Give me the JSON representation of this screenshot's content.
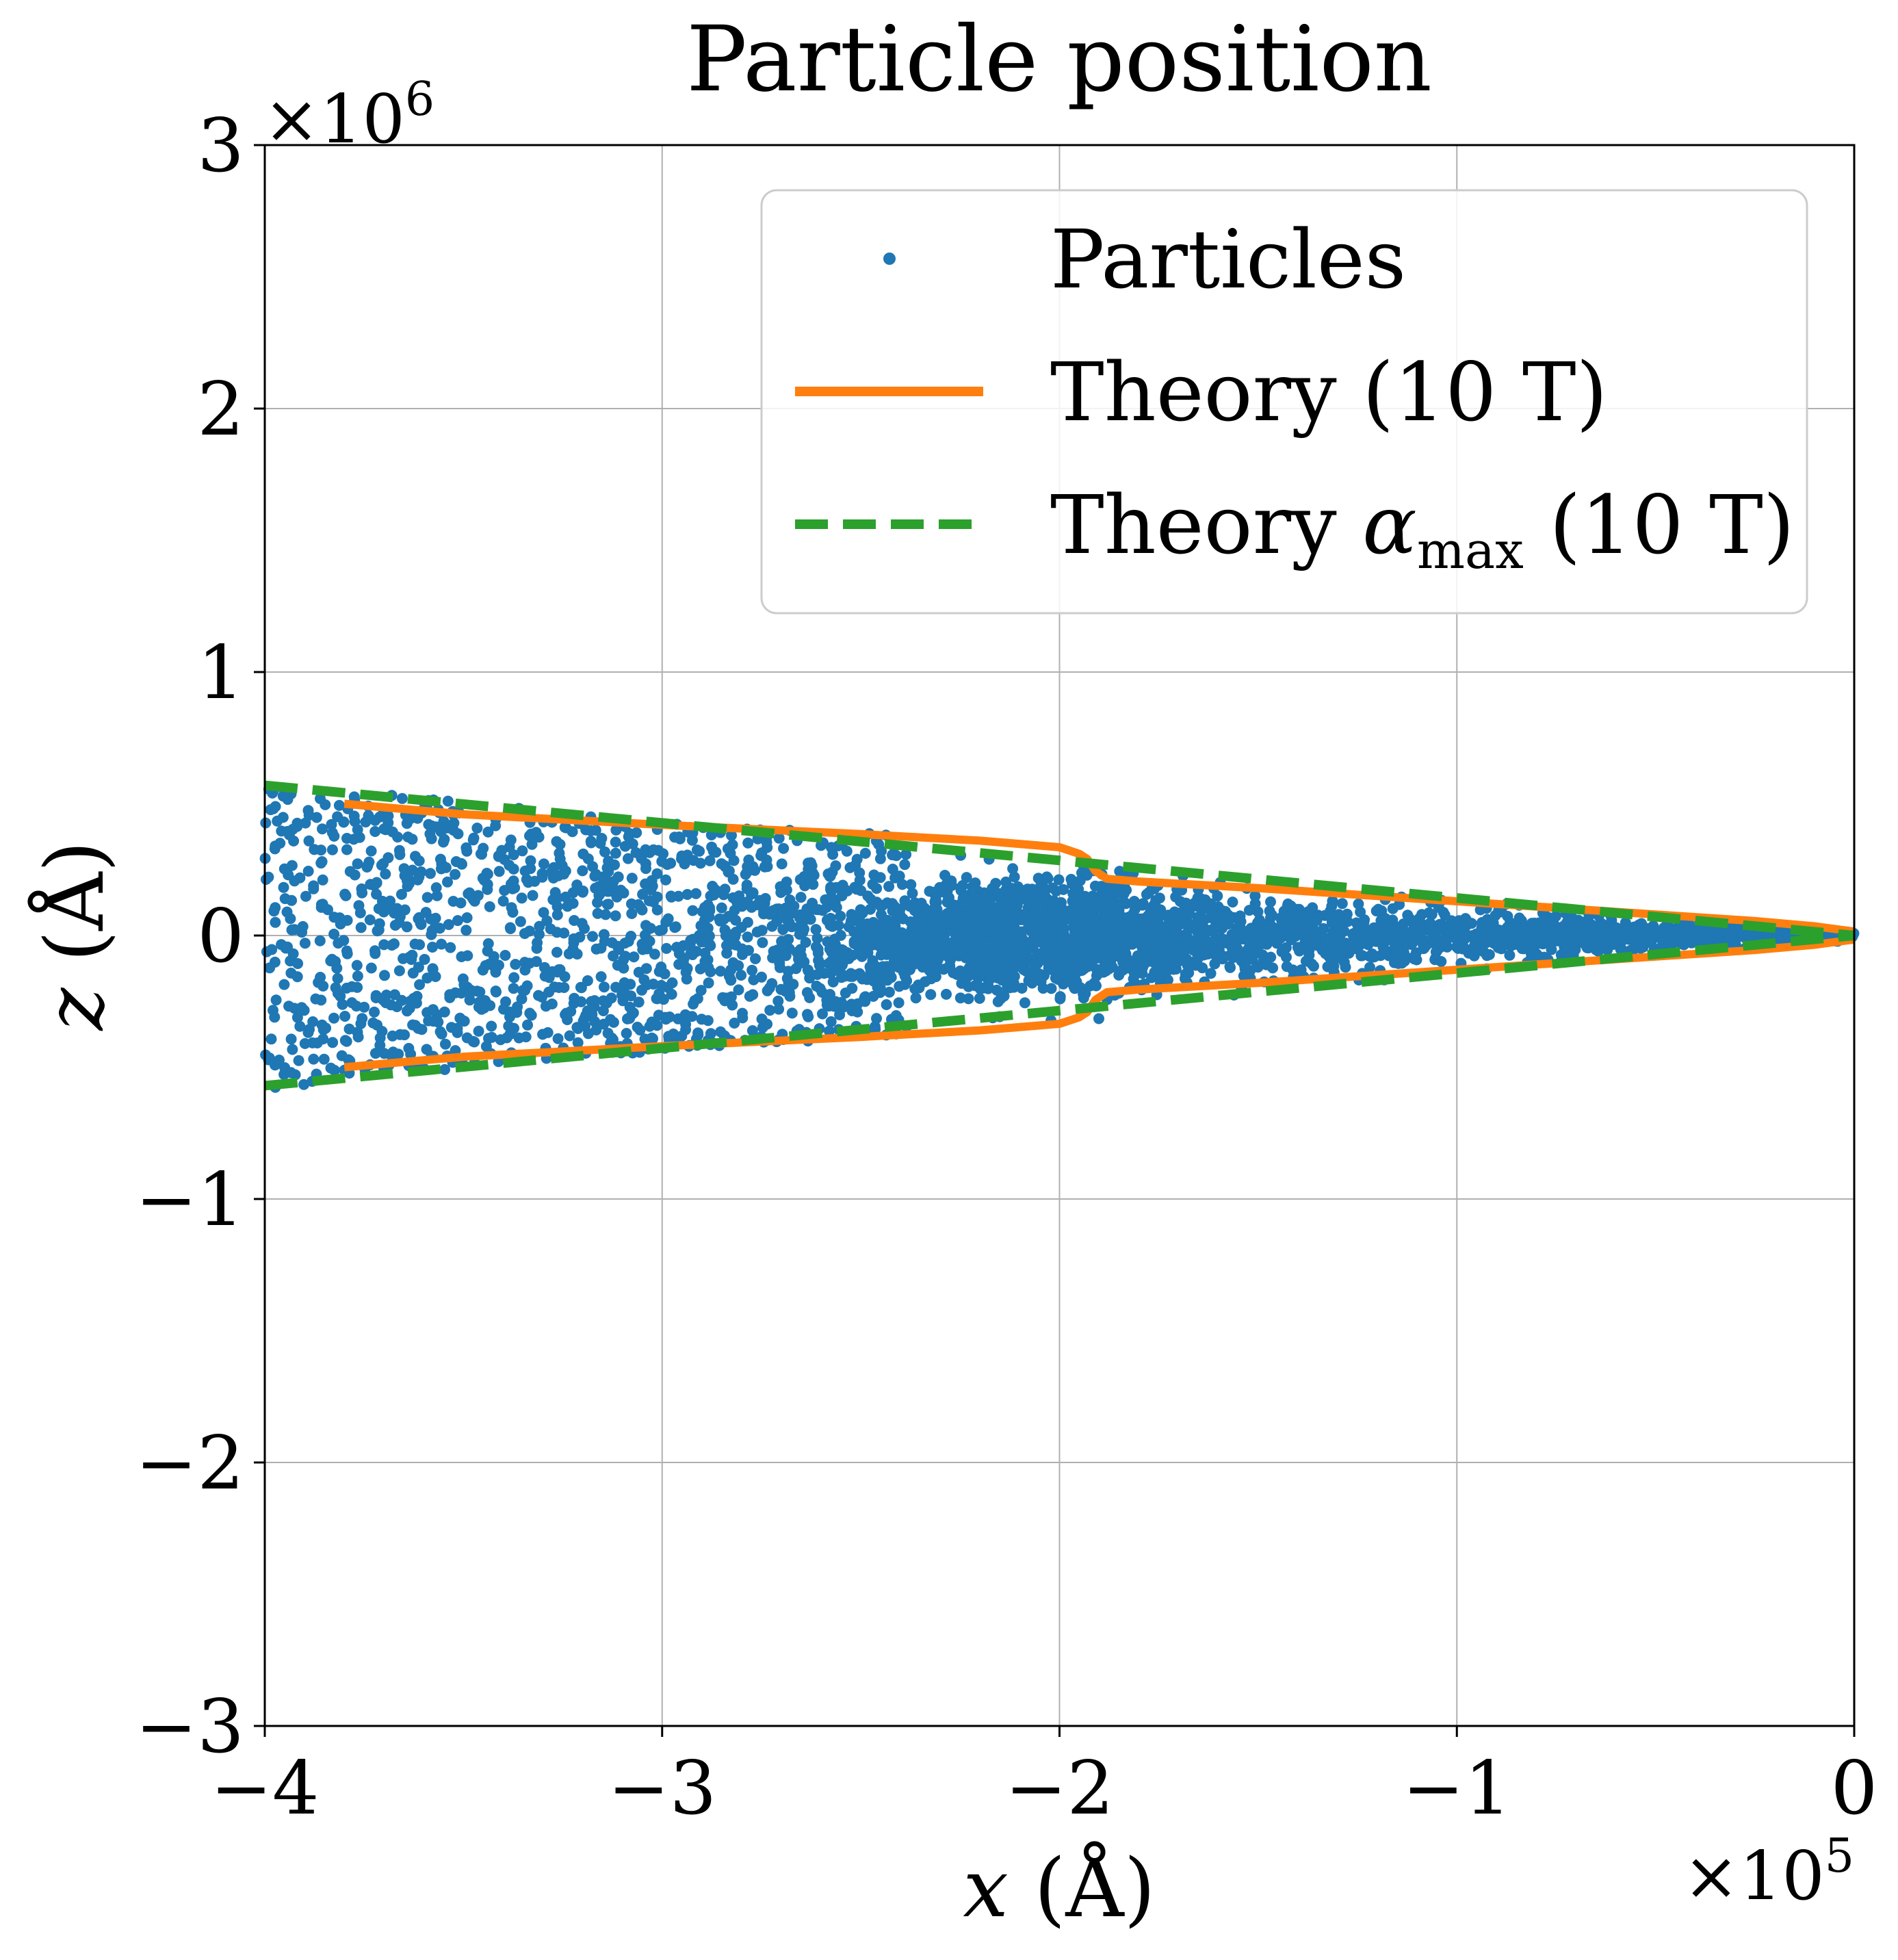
{
  "chart_data": {
    "type": "scatter",
    "title": "Particle position",
    "xlabel_var": "x",
    "xlabel_unit": "(Å)",
    "ylabel_var": "z",
    "ylabel_unit": "(Å)",
    "x_multiplier_base": "×10",
    "x_multiplier_exp": "5",
    "y_multiplier_base": "×10",
    "y_multiplier_exp": "6",
    "xlim": [
      -4,
      0
    ],
    "ylim": [
      -3,
      3
    ],
    "xticks": [
      -4,
      -3,
      -2,
      -1,
      0
    ],
    "xtick_labels": [
      "−4",
      "−3",
      "−2",
      "−1",
      "0"
    ],
    "yticks": [
      -3,
      -2,
      -1,
      0,
      1,
      2,
      3
    ],
    "ytick_labels": [
      "−3",
      "−2",
      "−1",
      "0",
      "1",
      "2",
      "3"
    ],
    "grid": true,
    "legend_position": "top-right",
    "legend": {
      "particles": "Particles",
      "theory": "Theory (10 T)",
      "alpha_prefix": "Theory ",
      "alpha_symbol": "α",
      "alpha_sub": "max",
      "alpha_suffix": " (10 T)"
    },
    "colors": {
      "particles": "#1f77b4",
      "theory": "#ff7f0e",
      "alpha_max": "#2ca02c",
      "grid": "#b0b0b0",
      "axes": "#000000"
    },
    "series": [
      {
        "name": "Particles",
        "kind": "scatter",
        "n_points": 4000,
        "description_envelope": {
          "x_range": [
            -4.0,
            0.0
          ],
          "z_max_at_x": [
            [
              -4.0,
              0.58
            ],
            [
              -3.0,
              0.45
            ],
            [
              -2.0,
              0.36
            ],
            [
              -1.9,
              0.27
            ],
            [
              -1.0,
              0.13
            ],
            [
              0.0,
              0.02
            ]
          ],
          "dense_core": {
            "x_range": [
              -2.6,
              -1.6
            ],
            "z_spread": 0.18
          }
        }
      },
      {
        "name": "Theory (10 T)",
        "kind": "line",
        "x": [
          -3.8,
          -3.5,
          -3.0,
          -2.5,
          -2.2,
          -2.0,
          -1.95,
          -1.93,
          -1.91,
          -1.88,
          -1.8,
          -1.5,
          -1.0,
          -0.5,
          -0.25,
          -0.1,
          0.0
        ],
        "z_upper": [
          0.5,
          0.46,
          0.42,
          0.385,
          0.36,
          0.335,
          0.31,
          0.29,
          0.245,
          0.215,
          0.205,
          0.18,
          0.13,
          0.08,
          0.055,
          0.035,
          0.015
        ],
        "z_lower_mirror": true
      },
      {
        "name": "Theory αmax (10 T)",
        "kind": "dashed-line",
        "x": [
          -4.0,
          0.0
        ],
        "z_upper": [
          0.57,
          0.0
        ],
        "z_lower_mirror": true
      }
    ]
  }
}
